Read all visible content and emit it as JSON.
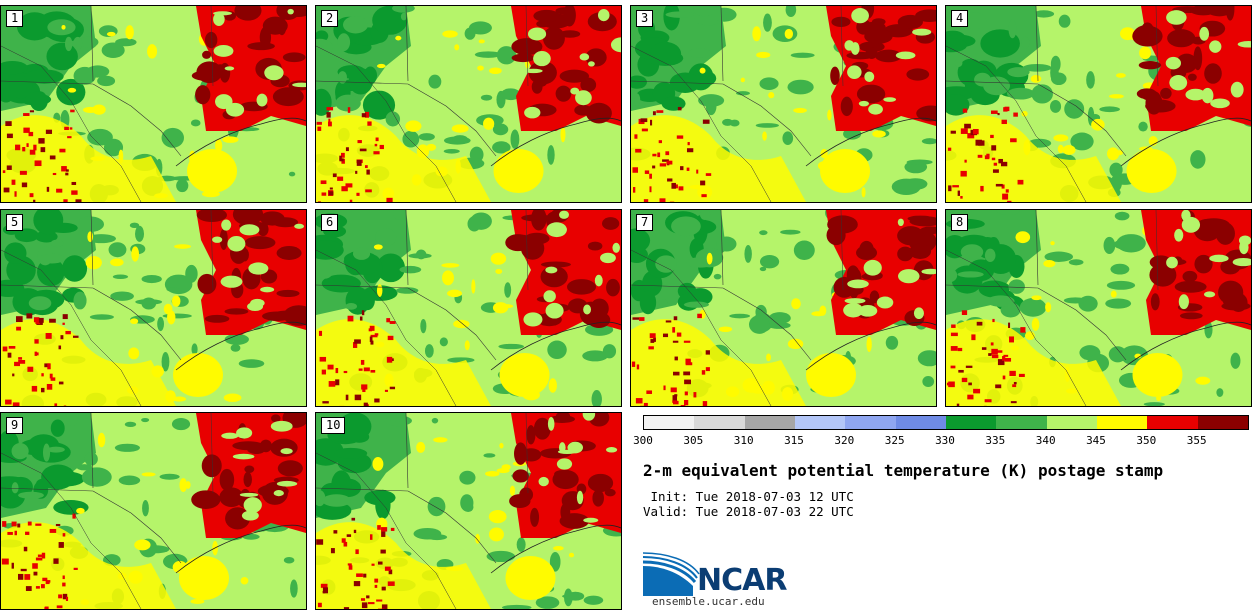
{
  "panels": [
    {
      "label": "1"
    },
    {
      "label": "2"
    },
    {
      "label": "3"
    },
    {
      "label": "4"
    },
    {
      "label": "5"
    },
    {
      "label": "6"
    },
    {
      "label": "7"
    },
    {
      "label": "8"
    },
    {
      "label": "9"
    },
    {
      "label": "10"
    }
  ],
  "colorbar": {
    "colors": [
      "#f2f2f2",
      "#d9d9d9",
      "#a6a6a6",
      "#b3c6f7",
      "#8fa6f0",
      "#6f8be5",
      "#0b9a2e",
      "#3fb34a",
      "#b5f46a",
      "#fffb00",
      "#e80000",
      "#8b0000"
    ],
    "ticks": [
      "300",
      "305",
      "310",
      "315",
      "320",
      "325",
      "330",
      "335",
      "340",
      "345",
      "350",
      "355"
    ]
  },
  "title": "2-m equivalent potential temperature (K) postage stamp",
  "init": " Init: Tue 2018-07-03 12 UTC",
  "valid": "Valid: Tue 2018-07-03 22 UTC",
  "logo": {
    "text": "NCAR",
    "site": "ensemble.ucar.edu",
    "colors": {
      "blue": "#0b6cb5",
      "dark": "#0b3d73"
    }
  },
  "map_colors": {
    "darkgreen": "#0b9a2e",
    "green": "#3fb34a",
    "lightgreen": "#b5f46a",
    "yellow": "#fffb00",
    "red": "#e80000",
    "darkred": "#8b0000"
  }
}
